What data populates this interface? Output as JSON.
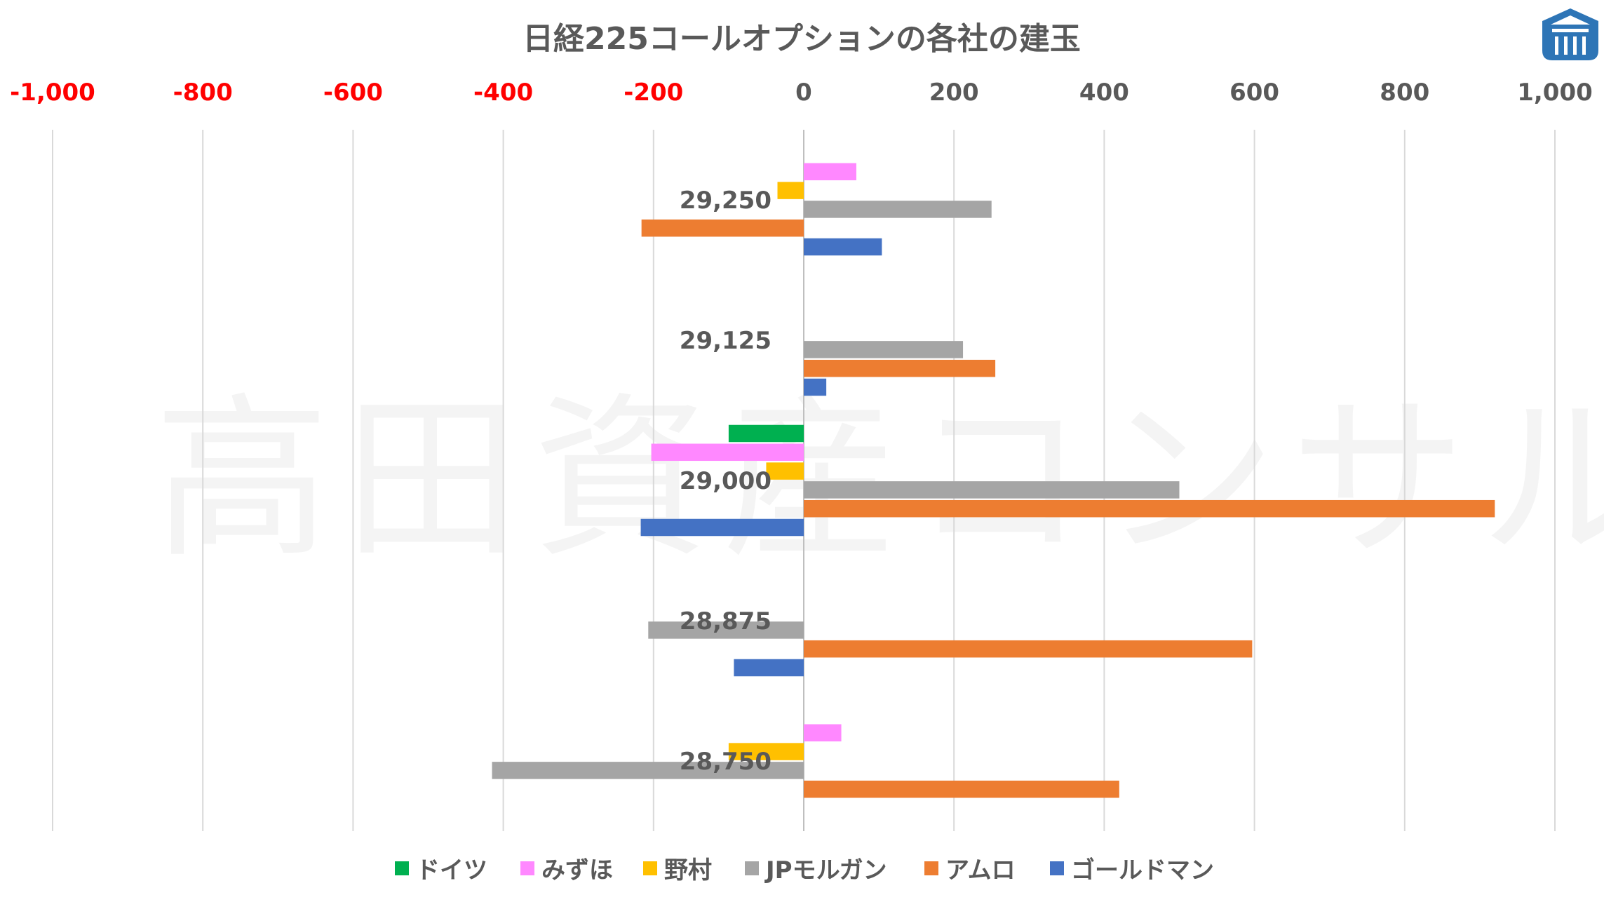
{
  "chart_data": {
    "type": "bar",
    "orientation": "horizontal",
    "title": "日経225コールオプションの各社の建玉",
    "watermark": "高田資産コンサル",
    "categories": [
      "29,250",
      "29,125",
      "29,000",
      "28,875",
      "28,750"
    ],
    "x_ticks": [
      "-1,000",
      "-800",
      "-600",
      "-400",
      "-200",
      "0",
      "200",
      "400",
      "600",
      "800",
      "1,000"
    ],
    "xlim": [
      -1000,
      1000
    ],
    "grid": true,
    "legend_position": "bottom",
    "series": [
      {
        "name": "ドイツ",
        "color": "#00B050",
        "values": [
          0,
          0,
          -100,
          0,
          0
        ]
      },
      {
        "name": "みずほ",
        "color": "#FF88FF",
        "values": [
          70,
          0,
          -203,
          0,
          50
        ]
      },
      {
        "name": "野村",
        "color": "#FFC000",
        "values": [
          -35,
          0,
          -50,
          0,
          -100
        ]
      },
      {
        "name": "JPモルガン",
        "color": "#A5A5A5",
        "values": [
          250,
          212,
          500,
          -207,
          -415
        ]
      },
      {
        "name": "アムロ",
        "color": "#ED7D31",
        "values": [
          -216,
          255,
          920,
          597,
          420
        ]
      },
      {
        "name": "ゴールドマン",
        "color": "#4472C4",
        "values": [
          104,
          30,
          -217,
          -93,
          0
        ]
      }
    ],
    "negative_tick_color": "#FF0000",
    "positive_tick_color": "#595959"
  },
  "logo": {
    "name": "takata-logo",
    "color": "#2E75B6"
  }
}
